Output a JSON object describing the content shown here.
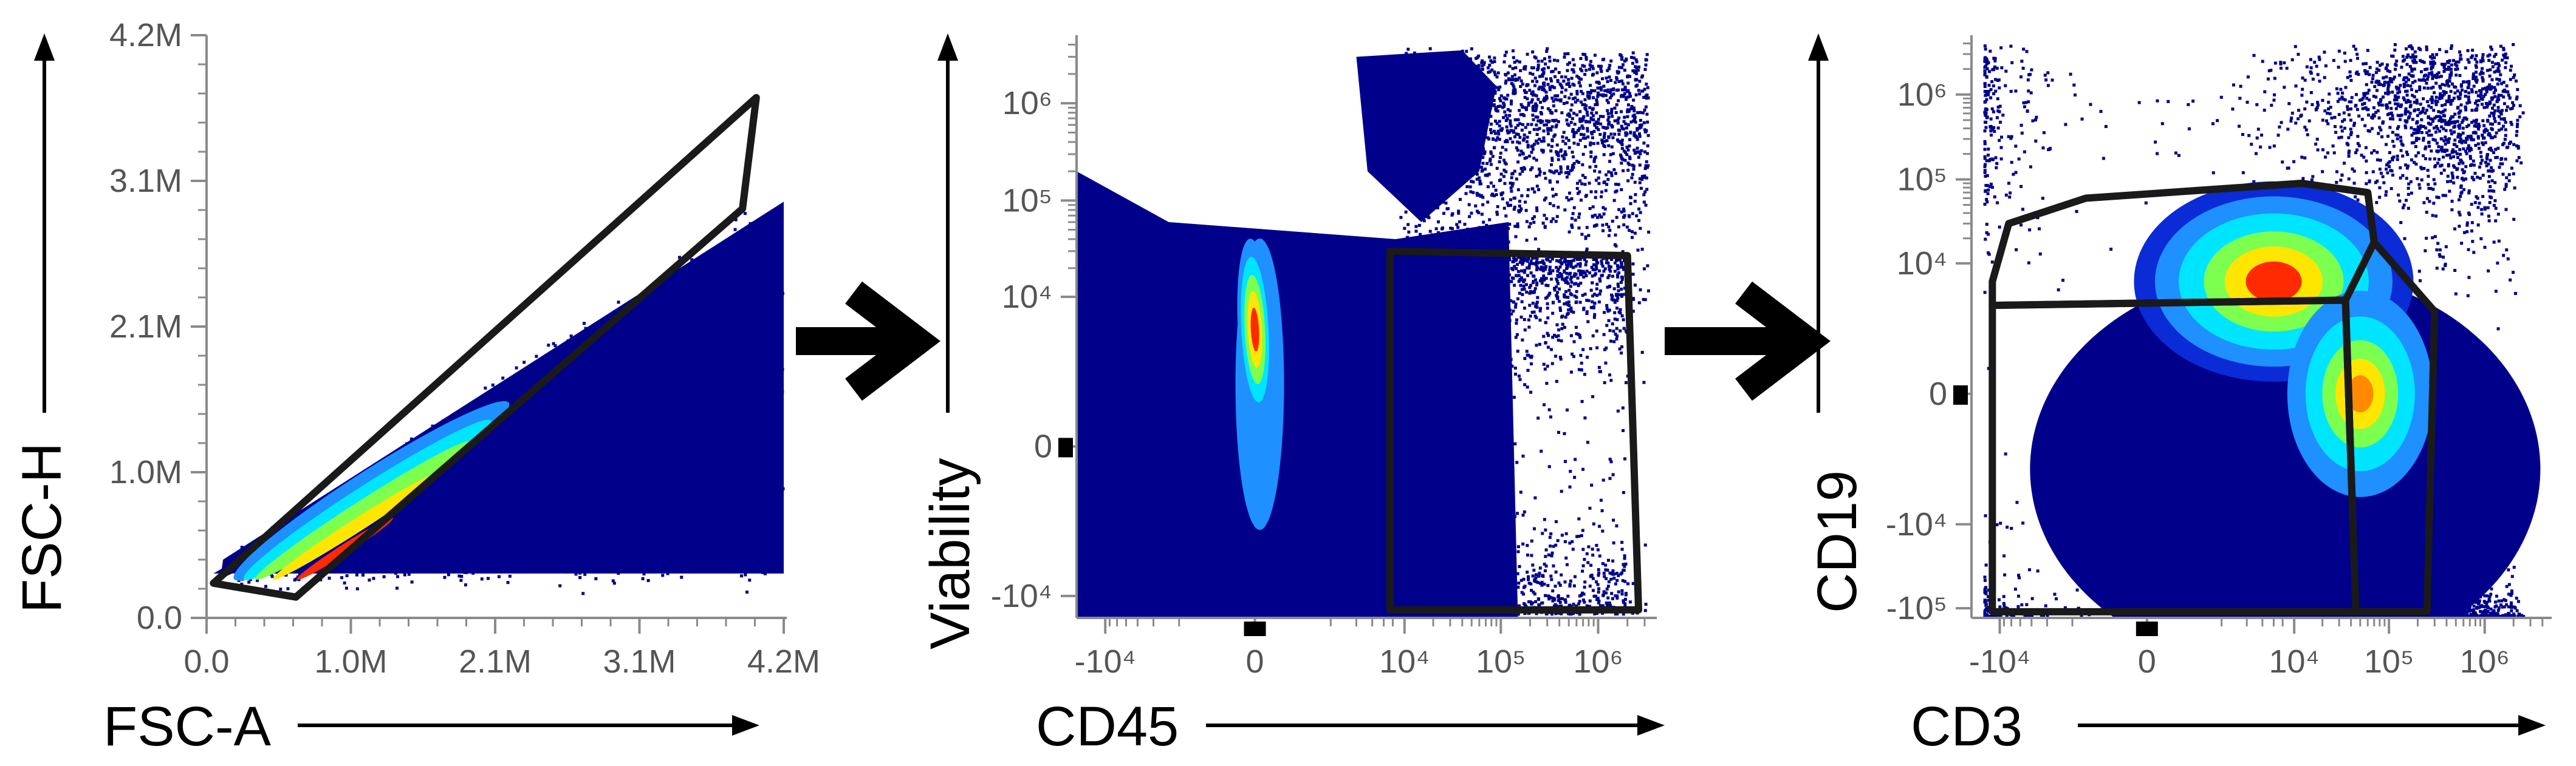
{
  "colors": {
    "density_low": "#00008b",
    "density_mid1": "#1e90ff",
    "density_mid2": "#00e5ff",
    "density_mid3": "#7cff4f",
    "density_mid4": "#ffe600",
    "density_high": "#ff2a00",
    "gate": "#1a1a1a",
    "tick": "#555555"
  },
  "between_arrow_icon": "right-arrow-icon",
  "chart_data": [
    {
      "type": "scatter",
      "subtype": "flow-cytometry-density-dot-plot",
      "xlabel": "FSC-A",
      "ylabel": "FSC-H",
      "x_ticks": [
        "0.0",
        "1.0M",
        "2.1M",
        "3.1M",
        "4.2M"
      ],
      "y_ticks": [
        "0.0",
        "1.0M",
        "2.1M",
        "3.1M",
        "4.2M"
      ],
      "x_tick_values": [
        0,
        1.05,
        2.1,
        3.15,
        4.2
      ],
      "y_tick_values": [
        0,
        1.05,
        2.1,
        3.15,
        4.2
      ],
      "xlim": [
        0,
        4.2
      ],
      "ylim": [
        0,
        4.2
      ],
      "units": "millions",
      "gate_polygon": [
        [
          0.05,
          0.25
        ],
        [
          0.65,
          0.15
        ],
        [
          3.9,
          2.95
        ],
        [
          4.0,
          3.75
        ]
      ],
      "hotspot": [
        0.9,
        0.85
      ]
    },
    {
      "type": "scatter",
      "subtype": "flow-cytometry-density-dot-plot",
      "xlabel": "CD45",
      "ylabel": "Viability",
      "x_ticks": [
        "-10⁴",
        "0",
        "10⁴",
        "10⁵",
        "10⁶"
      ],
      "y_ticks": [
        "-10⁴",
        "0",
        "10⁴",
        "10⁵",
        "10⁶"
      ],
      "x_tick_values": [
        -10000,
        0,
        10000,
        100000,
        1000000
      ],
      "y_tick_values": [
        -10000,
        0,
        10000,
        100000,
        1000000
      ],
      "scale": "biexponential",
      "gate_polygon": [
        [
          7000,
          30000
        ],
        [
          2000000,
          27000
        ],
        [
          2600000,
          -14000
        ],
        [
          7000,
          -14000
        ]
      ],
      "hotspot": [
        0,
        7000
      ]
    },
    {
      "type": "scatter",
      "subtype": "flow-cytometry-density-dot-plot",
      "xlabel": "CD3",
      "ylabel": "CD19",
      "x_ticks": [
        "-10⁴",
        "0",
        "10⁴",
        "10⁵",
        "10⁶"
      ],
      "y_ticks": [
        "-10⁵",
        "-10⁴",
        "0",
        "10⁴",
        "10⁵",
        "10⁶"
      ],
      "x_tick_values": [
        -10000,
        0,
        10000,
        100000,
        1000000
      ],
      "y_tick_values": [
        -100000,
        -10000,
        0,
        10000,
        100000,
        1000000
      ],
      "scale": "biexponential",
      "gates": [
        [
          [
            -12000,
            6000
          ],
          [
            -8000,
            30000
          ],
          [
            -1000,
            60000
          ],
          [
            12000,
            90000
          ],
          [
            60000,
            70000
          ],
          [
            70000,
            18000
          ],
          [
            35000,
            3500
          ],
          [
            -12000,
            3000
          ]
        ],
        [
          [
            -12000,
            3000
          ],
          [
            35000,
            3500
          ],
          [
            45000,
            -110000
          ],
          [
            -12000,
            -110000
          ]
        ],
        [
          [
            35000,
            3500
          ],
          [
            70000,
            18000
          ],
          [
            300000,
            2500
          ],
          [
            250000,
            -110000
          ],
          [
            45000,
            -110000
          ]
        ]
      ],
      "hotspots": [
        [
          6000,
          9000
        ],
        [
          50000,
          200
        ]
      ]
    }
  ]
}
